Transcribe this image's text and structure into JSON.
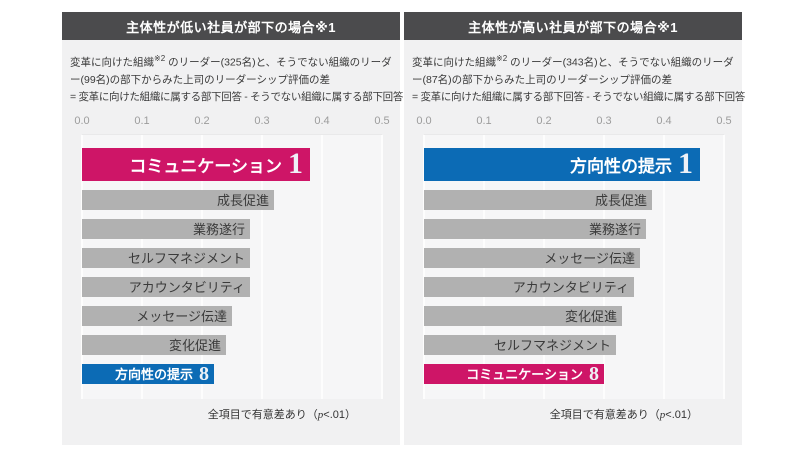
{
  "colors": {
    "header_bg": "#4b4b4d",
    "panel_bg": "#f1f1f2",
    "bar_gray": "#b1b1b1",
    "accent_pink": "#ce1567",
    "accent_blue": "#0c6bb5"
  },
  "panels": [
    {
      "header": "主体性が低い社員が部下の場合※1",
      "desc": {
        "lead": "変革に向けた組織",
        "sup": "※2",
        "rest": " のリーダー(325名)と、そうでない組織のリーダー(99名)の部下からみた上司のリーダーシップ評価の差",
        "eq_line": "= 変革に向けた組織に属する部下回答 - そうでない組織に属する部下回答"
      },
      "axis_ticks": [
        "0.0",
        "0.1",
        "0.2",
        "0.3",
        "0.4",
        "0.5"
      ],
      "bars": [
        {
          "label": "コミュニケーション",
          "value": 0.38,
          "type": "top",
          "rank": "1",
          "color": "#ce1567"
        },
        {
          "label": "成長促進",
          "value": 0.32,
          "type": "normal"
        },
        {
          "label": "業務遂行",
          "value": 0.28,
          "type": "normal"
        },
        {
          "label": "セルフマネジメント",
          "value": 0.28,
          "type": "normal"
        },
        {
          "label": "アカウンタビリティ",
          "value": 0.28,
          "type": "normal"
        },
        {
          "label": "メッセージ伝達",
          "value": 0.25,
          "type": "normal"
        },
        {
          "label": "変化促進",
          "value": 0.24,
          "type": "normal"
        },
        {
          "label": "方向性の提示",
          "value": 0.22,
          "type": "bottom",
          "rank": "8",
          "color": "#0c6bb5"
        }
      ],
      "note": {
        "pre": "全項目で有意差あり（",
        "p": "p",
        "post": "<.01）"
      }
    },
    {
      "header": "主体性が高い社員が部下の場合※1",
      "desc": {
        "lead": "変革に向けた組織",
        "sup": "※2",
        "rest": " のリーダー(343名)と、そうでない組織のリーダー(87名)の部下からみた上司のリーダーシップ評価の差",
        "eq_line": "= 変革に向けた組織に属する部下回答 - そうでない組織に属する部下回答"
      },
      "axis_ticks": [
        "0.0",
        "0.1",
        "0.2",
        "0.3",
        "0.4",
        "0.5"
      ],
      "bars": [
        {
          "label": "方向性の提示",
          "value": 0.46,
          "type": "top",
          "rank": "1",
          "color": "#0c6bb5"
        },
        {
          "label": "成長促進",
          "value": 0.38,
          "type": "normal"
        },
        {
          "label": "業務遂行",
          "value": 0.37,
          "type": "normal"
        },
        {
          "label": "メッセージ伝達",
          "value": 0.36,
          "type": "normal"
        },
        {
          "label": "アカウンタビリティ",
          "value": 0.35,
          "type": "normal"
        },
        {
          "label": "変化促進",
          "value": 0.33,
          "type": "normal"
        },
        {
          "label": "セルフマネジメント",
          "value": 0.32,
          "type": "normal"
        },
        {
          "label": "コミュニケーション",
          "value": 0.3,
          "type": "bottom",
          "rank": "8",
          "color": "#ce1567"
        }
      ],
      "note": {
        "pre": "全項目で有意差あり（",
        "p": "p",
        "post": "<.01）"
      }
    }
  ],
  "chart_data": [
    {
      "type": "bar",
      "orientation": "horizontal",
      "title": "主体性が低い社員が部下の場合※1",
      "subtitle": "変革に向けた組織※2 のリーダー(325名)と、そうでない組織のリーダー(99名)の部下からみた上司のリーダーシップ評価の差 = 変革に向けた組織に属する部下回答 - そうでない組織に属する部下回答",
      "categories": [
        "コミュニケーション",
        "成長促進",
        "業務遂行",
        "セルフマネジメント",
        "アカウンタビリティ",
        "メッセージ伝達",
        "変化促進",
        "方向性の提示"
      ],
      "values": [
        0.38,
        0.32,
        0.28,
        0.28,
        0.28,
        0.25,
        0.24,
        0.22
      ],
      "highlights": [
        {
          "category": "コミュニケーション",
          "rank": 1,
          "color": "#ce1567"
        },
        {
          "category": "方向性の提示",
          "rank": 8,
          "color": "#0c6bb5"
        }
      ],
      "xlabel": "",
      "ylabel": "",
      "xlim": [
        0.0,
        0.5
      ],
      "xticks": [
        0.0,
        0.1,
        0.2,
        0.3,
        0.4,
        0.5
      ],
      "grid": true,
      "legend": false,
      "annotation": "全項目で有意差あり（p<.01）"
    },
    {
      "type": "bar",
      "orientation": "horizontal",
      "title": "主体性が高い社員が部下の場合※1",
      "subtitle": "変革に向けた組織※2 のリーダー(343名)と、そうでない組織のリーダー(87名)の部下からみた上司のリーダーシップ評価の差 = 変革に向けた組織に属する部下回答 - そうでない組織に属する部下回答",
      "categories": [
        "方向性の提示",
        "成長促進",
        "業務遂行",
        "メッセージ伝達",
        "アカウンタビリティ",
        "変化促進",
        "セルフマネジメント",
        "コミュニケーション"
      ],
      "values": [
        0.46,
        0.38,
        0.37,
        0.36,
        0.35,
        0.33,
        0.32,
        0.3
      ],
      "highlights": [
        {
          "category": "方向性の提示",
          "rank": 1,
          "color": "#0c6bb5"
        },
        {
          "category": "コミュニケーション",
          "rank": 8,
          "color": "#ce1567"
        }
      ],
      "xlabel": "",
      "ylabel": "",
      "xlim": [
        0.0,
        0.5
      ],
      "xticks": [
        0.0,
        0.1,
        0.2,
        0.3,
        0.4,
        0.5
      ],
      "grid": true,
      "legend": false,
      "annotation": "全項目で有意差あり（p<.01）"
    }
  ]
}
